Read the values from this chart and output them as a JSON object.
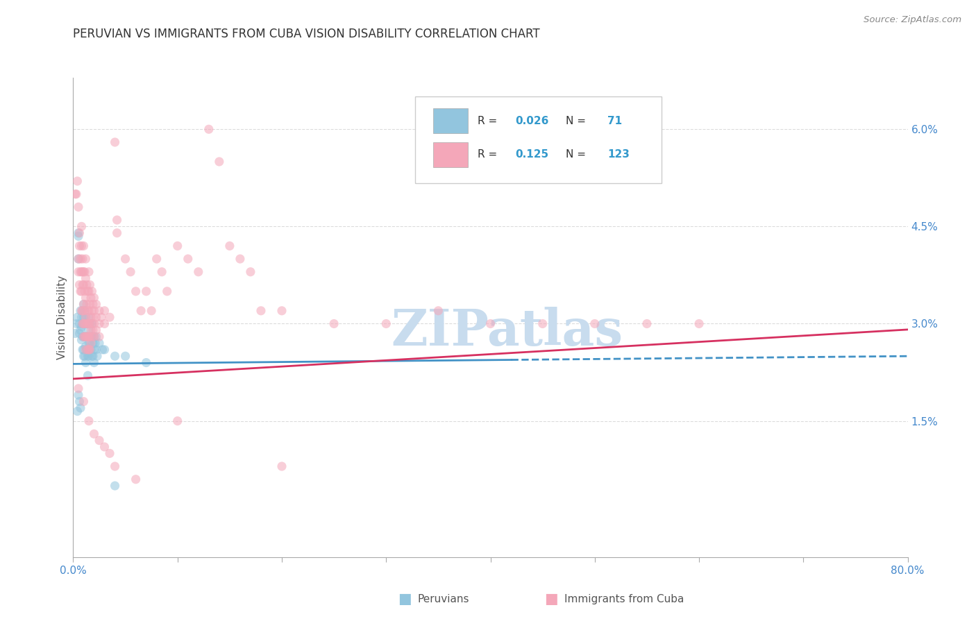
{
  "title": "PERUVIAN VS IMMIGRANTS FROM CUBA VISION DISABILITY CORRELATION CHART",
  "source": "Source: ZipAtlas.com",
  "ylabel": "Vision Disability",
  "xmin": 0.0,
  "xmax": 0.8,
  "ymin": -0.006,
  "ymax": 0.068,
  "right_yticks": [
    0.015,
    0.03,
    0.045,
    0.06
  ],
  "right_yticklabels": [
    "1.5%",
    "3.0%",
    "4.5%",
    "6.0%"
  ],
  "blue_R": 0.026,
  "blue_N": 71,
  "pink_R": 0.125,
  "pink_N": 123,
  "watermark": "ZIPatlas",
  "watermark_color": "#c8dcee",
  "blue_scatter_color": "#92c5de",
  "pink_scatter_color": "#f4a7b9",
  "blue_line_color": "#4292c6",
  "pink_line_color": "#d63060",
  "grid_color": "#cccccc",
  "blue_trend_intercept": 0.0238,
  "blue_trend_slope": 0.0015,
  "blue_trend_xmax_solid": 0.42,
  "pink_trend_intercept": 0.0215,
  "pink_trend_slope": 0.0095,
  "blue_scatter": [
    [
      0.002,
      0.0285
    ],
    [
      0.003,
      0.03
    ],
    [
      0.004,
      0.031
    ],
    [
      0.005,
      0.0435
    ],
    [
      0.005,
      0.04
    ],
    [
      0.005,
      0.044
    ],
    [
      0.006,
      0.03
    ],
    [
      0.006,
      0.0285
    ],
    [
      0.007,
      0.032
    ],
    [
      0.007,
      0.029
    ],
    [
      0.008,
      0.031
    ],
    [
      0.008,
      0.0295
    ],
    [
      0.008,
      0.0275
    ],
    [
      0.009,
      0.032
    ],
    [
      0.009,
      0.03
    ],
    [
      0.009,
      0.028
    ],
    [
      0.009,
      0.026
    ],
    [
      0.01,
      0.033
    ],
    [
      0.01,
      0.031
    ],
    [
      0.01,
      0.03
    ],
    [
      0.01,
      0.028
    ],
    [
      0.01,
      0.026
    ],
    [
      0.01,
      0.025
    ],
    [
      0.011,
      0.032
    ],
    [
      0.011,
      0.03
    ],
    [
      0.011,
      0.028
    ],
    [
      0.011,
      0.025
    ],
    [
      0.012,
      0.031
    ],
    [
      0.012,
      0.03
    ],
    [
      0.012,
      0.028
    ],
    [
      0.012,
      0.0265
    ],
    [
      0.012,
      0.024
    ],
    [
      0.013,
      0.03
    ],
    [
      0.013,
      0.028
    ],
    [
      0.013,
      0.026
    ],
    [
      0.014,
      0.03
    ],
    [
      0.014,
      0.028
    ],
    [
      0.014,
      0.025
    ],
    [
      0.014,
      0.022
    ],
    [
      0.015,
      0.031
    ],
    [
      0.015,
      0.029
    ],
    [
      0.015,
      0.027
    ],
    [
      0.015,
      0.025
    ],
    [
      0.016,
      0.03
    ],
    [
      0.016,
      0.027
    ],
    [
      0.017,
      0.028
    ],
    [
      0.017,
      0.026
    ],
    [
      0.018,
      0.03
    ],
    [
      0.018,
      0.028
    ],
    [
      0.018,
      0.025
    ],
    [
      0.019,
      0.027
    ],
    [
      0.019,
      0.025
    ],
    [
      0.02,
      0.028
    ],
    [
      0.02,
      0.026
    ],
    [
      0.02,
      0.024
    ],
    [
      0.021,
      0.027
    ],
    [
      0.022,
      0.028
    ],
    [
      0.022,
      0.026
    ],
    [
      0.023,
      0.025
    ],
    [
      0.025,
      0.027
    ],
    [
      0.028,
      0.026
    ],
    [
      0.03,
      0.026
    ],
    [
      0.04,
      0.025
    ],
    [
      0.05,
      0.025
    ],
    [
      0.07,
      0.024
    ],
    [
      0.004,
      0.0165
    ],
    [
      0.005,
      0.019
    ],
    [
      0.006,
      0.018
    ],
    [
      0.007,
      0.017
    ],
    [
      0.04,
      0.005
    ]
  ],
  "pink_scatter": [
    [
      0.002,
      0.05
    ],
    [
      0.003,
      0.05
    ],
    [
      0.004,
      0.052
    ],
    [
      0.005,
      0.048
    ],
    [
      0.005,
      0.04
    ],
    [
      0.005,
      0.038
    ],
    [
      0.006,
      0.044
    ],
    [
      0.006,
      0.042
    ],
    [
      0.006,
      0.036
    ],
    [
      0.007,
      0.04
    ],
    [
      0.007,
      0.038
    ],
    [
      0.007,
      0.035
    ],
    [
      0.008,
      0.045
    ],
    [
      0.008,
      0.042
    ],
    [
      0.008,
      0.038
    ],
    [
      0.008,
      0.035
    ],
    [
      0.008,
      0.032
    ],
    [
      0.009,
      0.04
    ],
    [
      0.009,
      0.038
    ],
    [
      0.009,
      0.036
    ],
    [
      0.009,
      0.032
    ],
    [
      0.009,
      0.03
    ],
    [
      0.01,
      0.042
    ],
    [
      0.01,
      0.038
    ],
    [
      0.01,
      0.036
    ],
    [
      0.01,
      0.033
    ],
    [
      0.01,
      0.03
    ],
    [
      0.01,
      0.028
    ],
    [
      0.011,
      0.038
    ],
    [
      0.011,
      0.035
    ],
    [
      0.011,
      0.032
    ],
    [
      0.011,
      0.03
    ],
    [
      0.011,
      0.028
    ],
    [
      0.012,
      0.04
    ],
    [
      0.012,
      0.037
    ],
    [
      0.012,
      0.034
    ],
    [
      0.012,
      0.031
    ],
    [
      0.012,
      0.028
    ],
    [
      0.012,
      0.026
    ],
    [
      0.013,
      0.036
    ],
    [
      0.013,
      0.033
    ],
    [
      0.013,
      0.03
    ],
    [
      0.013,
      0.028
    ],
    [
      0.014,
      0.035
    ],
    [
      0.014,
      0.032
    ],
    [
      0.014,
      0.03
    ],
    [
      0.014,
      0.028
    ],
    [
      0.014,
      0.026
    ],
    [
      0.015,
      0.038
    ],
    [
      0.015,
      0.035
    ],
    [
      0.015,
      0.032
    ],
    [
      0.015,
      0.03
    ],
    [
      0.015,
      0.028
    ],
    [
      0.015,
      0.026
    ],
    [
      0.016,
      0.036
    ],
    [
      0.016,
      0.033
    ],
    [
      0.016,
      0.03
    ],
    [
      0.016,
      0.028
    ],
    [
      0.016,
      0.026
    ],
    [
      0.017,
      0.034
    ],
    [
      0.017,
      0.031
    ],
    [
      0.017,
      0.029
    ],
    [
      0.017,
      0.027
    ],
    [
      0.018,
      0.035
    ],
    [
      0.018,
      0.032
    ],
    [
      0.018,
      0.03
    ],
    [
      0.018,
      0.028
    ],
    [
      0.019,
      0.033
    ],
    [
      0.019,
      0.031
    ],
    [
      0.019,
      0.029
    ],
    [
      0.02,
      0.034
    ],
    [
      0.02,
      0.032
    ],
    [
      0.02,
      0.03
    ],
    [
      0.02,
      0.028
    ],
    [
      0.022,
      0.033
    ],
    [
      0.022,
      0.031
    ],
    [
      0.022,
      0.029
    ],
    [
      0.025,
      0.032
    ],
    [
      0.025,
      0.03
    ],
    [
      0.025,
      0.028
    ],
    [
      0.027,
      0.031
    ],
    [
      0.03,
      0.032
    ],
    [
      0.03,
      0.03
    ],
    [
      0.035,
      0.031
    ],
    [
      0.04,
      0.058
    ],
    [
      0.042,
      0.046
    ],
    [
      0.042,
      0.044
    ],
    [
      0.05,
      0.04
    ],
    [
      0.055,
      0.038
    ],
    [
      0.06,
      0.035
    ],
    [
      0.065,
      0.032
    ],
    [
      0.07,
      0.035
    ],
    [
      0.075,
      0.032
    ],
    [
      0.08,
      0.04
    ],
    [
      0.085,
      0.038
    ],
    [
      0.09,
      0.035
    ],
    [
      0.1,
      0.042
    ],
    [
      0.11,
      0.04
    ],
    [
      0.12,
      0.038
    ],
    [
      0.13,
      0.06
    ],
    [
      0.14,
      0.055
    ],
    [
      0.15,
      0.042
    ],
    [
      0.16,
      0.04
    ],
    [
      0.17,
      0.038
    ],
    [
      0.18,
      0.032
    ],
    [
      0.2,
      0.032
    ],
    [
      0.25,
      0.03
    ],
    [
      0.3,
      0.03
    ],
    [
      0.35,
      0.032
    ],
    [
      0.4,
      0.03
    ],
    [
      0.45,
      0.03
    ],
    [
      0.5,
      0.03
    ],
    [
      0.55,
      0.03
    ],
    [
      0.6,
      0.03
    ],
    [
      0.005,
      0.02
    ],
    [
      0.01,
      0.018
    ],
    [
      0.015,
      0.015
    ],
    [
      0.02,
      0.013
    ],
    [
      0.025,
      0.012
    ],
    [
      0.03,
      0.011
    ],
    [
      0.035,
      0.01
    ],
    [
      0.04,
      0.008
    ],
    [
      0.06,
      0.006
    ],
    [
      0.1,
      0.015
    ],
    [
      0.2,
      0.008
    ]
  ]
}
